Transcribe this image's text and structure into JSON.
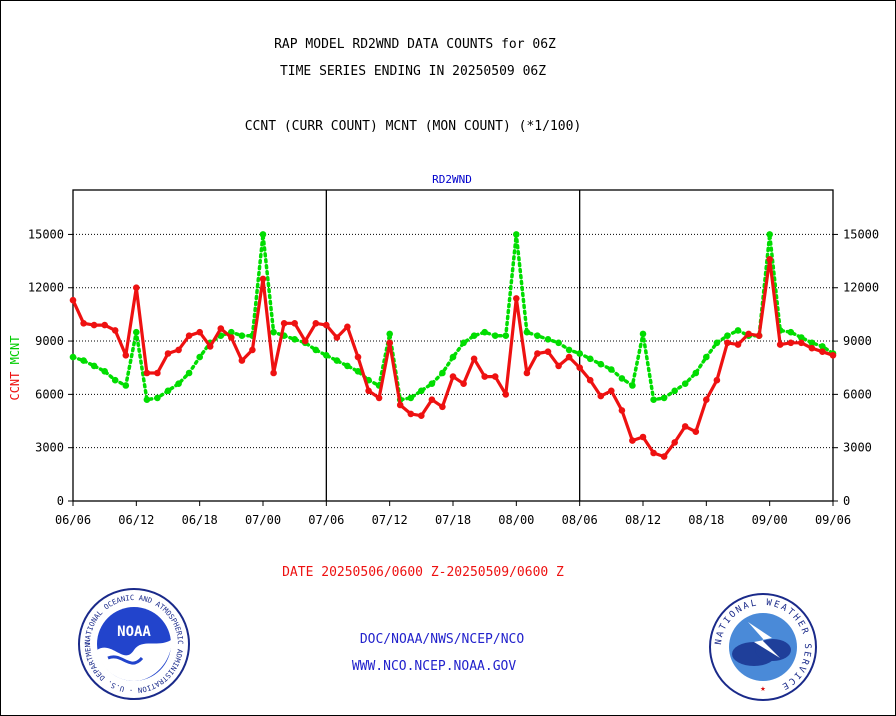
{
  "title_line1": "RAP MODEL RD2WND DATA COUNTS for 06Z",
  "title_line2": "TIME SERIES ENDING IN 20250509 06Z",
  "subtitle": "CCNT (CURR COUNT) MCNT (MON COUNT) (*1/100)",
  "panel_label": "RD2WND",
  "ylabel_ccnt": "CCNT",
  "ylabel_mcnt": "MCNT",
  "date_range": "DATE 20250506/0600 Z-20250509/0600 Z",
  "footer": {
    "line1": "DOC/NOAA/NWS/NCEP/NCO",
    "line2": "WWW.NCO.NCEP.NOAA.GOV"
  },
  "logos": {
    "noaa_text": "NOAA",
    "noaa_ring": "NATIONAL OCEANIC AND ATMOSPHERIC ADMINISTRATION · U.S. DEPARTMENT OF COMMERCE ·",
    "nws_ring": "NATIONAL WEATHER SERVICE"
  },
  "colors": {
    "ccnt": "#ee1111",
    "mcnt": "#00dd00",
    "date_text": "#ee1111",
    "footer_text": "#2222cc",
    "label_blue": "#0000cc"
  },
  "chart_data": {
    "type": "line",
    "xlabel": "",
    "ylabel": "CCNT MCNT",
    "ylim": [
      0,
      17500
    ],
    "yticks": [
      0,
      3000,
      6000,
      9000,
      12000,
      15000
    ],
    "ytick_labels": [
      "0",
      "3000",
      "6000",
      "9000",
      "12000",
      "15000"
    ],
    "xlim": [
      0,
      72
    ],
    "xticks": [
      0,
      6,
      12,
      18,
      24,
      30,
      36,
      42,
      48,
      54,
      60,
      66,
      72
    ],
    "xtick_labels": [
      "06/06",
      "06/12",
      "06/18",
      "07/00",
      "07/06",
      "07/12",
      "07/18",
      "08/00",
      "08/06",
      "08/12",
      "08/18",
      "09/00",
      "09/06"
    ],
    "day_dividers": [
      24,
      48
    ],
    "grid": "horizontal dotted",
    "x": [
      0,
      1,
      2,
      3,
      4,
      5,
      6,
      7,
      8,
      9,
      10,
      11,
      12,
      13,
      14,
      15,
      16,
      17,
      18,
      19,
      20,
      21,
      22,
      23,
      24,
      25,
      26,
      27,
      28,
      29,
      30,
      31,
      32,
      33,
      34,
      35,
      36,
      37,
      38,
      39,
      40,
      41,
      42,
      43,
      44,
      45,
      46,
      47,
      48,
      49,
      50,
      51,
      52,
      53,
      54,
      55,
      56,
      57,
      58,
      59,
      60,
      61,
      62,
      63,
      64,
      65,
      66,
      67,
      68,
      69,
      70,
      71,
      72
    ],
    "series": [
      {
        "name": "CCNT",
        "style": "solid",
        "values": [
          11300,
          10000,
          9900,
          9900,
          9600,
          8200,
          12000,
          7200,
          7200,
          8300,
          8500,
          9300,
          9500,
          8700,
          9700,
          9200,
          7900,
          8500,
          12500,
          7200,
          10000,
          10000,
          9000,
          10000,
          9900,
          9200,
          9800,
          8100,
          6200,
          5800,
          8900,
          5400,
          4900,
          4800,
          5700,
          5300,
          7000,
          6600,
          8000,
          7000,
          7000,
          6000,
          11400,
          7200,
          8300,
          8400,
          7600,
          8100,
          7500,
          6800,
          5900,
          6200,
          5100,
          3400,
          3600,
          2700,
          2500,
          3300,
          4200,
          3900,
          5700,
          6800,
          8900,
          8800,
          9400,
          9300,
          13600,
          8800,
          8900,
          8900,
          8600,
          8400,
          8200
        ]
      },
      {
        "name": "MCNT",
        "style": "dotted",
        "values": [
          8100,
          7900,
          7600,
          7300,
          6800,
          6500,
          9500,
          5700,
          5800,
          6200,
          6600,
          7200,
          8100,
          8900,
          9300,
          9500,
          9300,
          9300,
          15000,
          9500,
          9300,
          9100,
          8900,
          8500,
          8200,
          7900,
          7600,
          7300,
          6800,
          6500,
          9400,
          5700,
          5800,
          6200,
          6600,
          7200,
          8100,
          8900,
          9300,
          9500,
          9300,
          9300,
          15000,
          9500,
          9300,
          9100,
          8900,
          8500,
          8300,
          8000,
          7700,
          7400,
          6900,
          6500,
          9400,
          5700,
          5800,
          6200,
          6600,
          7200,
          8100,
          8900,
          9300,
          9600,
          9300,
          9300,
          15000,
          9600,
          9500,
          9200,
          8900,
          8700,
          8300
        ]
      }
    ]
  }
}
